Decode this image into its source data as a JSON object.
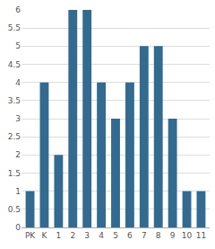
{
  "chart_data": {
    "type": "bar",
    "categories": [
      "PK",
      "K",
      "1",
      "2",
      "3",
      "4",
      "5",
      "6",
      "7",
      "8",
      "9",
      "10",
      "11"
    ],
    "values": [
      1,
      4,
      2,
      6,
      6,
      4,
      3,
      4,
      5,
      5,
      3,
      1,
      1
    ],
    "color": "#336a90",
    "ylim": [
      0,
      6
    ],
    "yticks": [
      0,
      0.5,
      1,
      1.5,
      2,
      2.5,
      3,
      3.5,
      4,
      4.5,
      5,
      5.5,
      6
    ],
    "grid": true
  }
}
